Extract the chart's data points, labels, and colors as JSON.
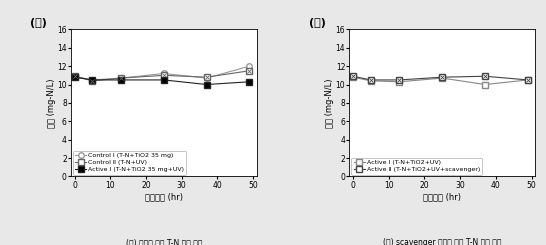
{
  "left": {
    "label": "(가)",
    "x": [
      0,
      5,
      13,
      25,
      37,
      49
    ],
    "series": [
      {
        "name": "Control I (T-N+TiO2 35 mg)",
        "y": [
          10.9,
          10.5,
          10.7,
          11.2,
          10.7,
          12.0
        ],
        "marker": "o",
        "markerface": "white",
        "linestyle": "-",
        "color": "#999999",
        "markersize": 4,
        "hatch": false
      },
      {
        "name": "Control Ⅱ (T-N+UV)",
        "y": [
          10.9,
          10.4,
          10.7,
          11.0,
          10.8,
          11.5
        ],
        "marker": "s",
        "markerface": "white",
        "linestyle": "-",
        "color": "#666666",
        "markersize": 4,
        "hatch": true
      },
      {
        "name": "Active I (T-N+TiO2 35 mg+UV)",
        "y": [
          10.8,
          10.5,
          10.5,
          10.5,
          10.0,
          10.3
        ],
        "marker": "s",
        "markerface": "black",
        "linestyle": "-",
        "color": "#222222",
        "markersize": 5,
        "hatch": false
      }
    ],
    "xlabel": "경과시간 (hr)",
    "ylabel": "농도 (mg-N/L)",
    "ylim": [
      0,
      16
    ],
    "xlim": [
      -1,
      51
    ],
    "yticks": [
      0,
      2,
      4,
      6,
      8,
      10,
      12,
      14,
      16
    ],
    "xticks": [
      0,
      10,
      20,
      30,
      40,
      50
    ],
    "caption": "(가) 시간에 따른 T-N 농도 변화",
    "legend_loc": "lower left"
  },
  "right": {
    "label": "(나)",
    "x": [
      0,
      5,
      13,
      25,
      37,
      49
    ],
    "series": [
      {
        "name": "Active I (T-N+TiO2+UV)",
        "y": [
          10.8,
          10.4,
          10.3,
          10.7,
          10.0,
          10.5
        ],
        "marker": "s",
        "markerface": "white",
        "linestyle": "-",
        "color": "#888888",
        "markersize": 4,
        "hatch": false
      },
      {
        "name": "Active Ⅱ (T-N+TiO2+UV+scavenger)",
        "y": [
          10.9,
          10.5,
          10.5,
          10.8,
          10.9,
          10.5
        ],
        "marker": "s",
        "markerface": "white",
        "linestyle": "-",
        "color": "#444444",
        "markersize": 4,
        "hatch": true
      }
    ],
    "xlabel": "경과시간 (hr)",
    "ylabel": "농도 (mg-N/L)",
    "ylim": [
      0,
      16
    ],
    "xlim": [
      -1,
      51
    ],
    "yticks": [
      0,
      2,
      4,
      6,
      8,
      10,
      12,
      14,
      16
    ],
    "xticks": [
      0,
      10,
      20,
      30,
      40,
      50
    ],
    "caption": "(나) scavenger 주입에 따른 T-N 농도 변화",
    "legend_loc": "lower left"
  },
  "bg_color": "#e8e8e8",
  "plot_bg": "#ffffff"
}
